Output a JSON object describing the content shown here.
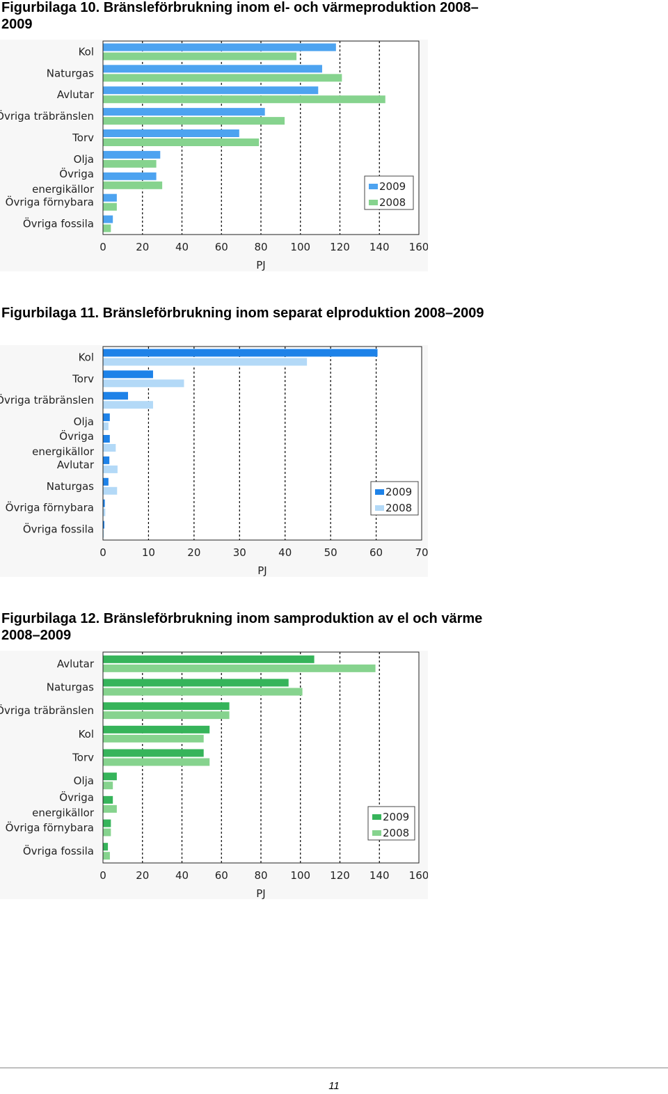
{
  "figures": [
    {
      "caption": "Figurbilaga 10. Bränsleförbrukning inom el- och värmeproduktion 2008–2009"
    },
    {
      "caption": "Figurbilaga 11. Bränsleförbrukning inom separat elproduktion 2008–2009"
    },
    {
      "caption": "Figurbilaga 12. Bränsleförbrukning inom samproduktion av el och värme 2008–2009"
    }
  ],
  "chart_data": [
    {
      "type": "bar",
      "orientation": "horizontal",
      "categories": [
        "Kol",
        "Naturgas",
        "Avlutar",
        "Övriga träbränslen",
        "Torv",
        "Olja",
        "Övriga energikällor",
        "Övriga förnybara",
        "Övriga fossila"
      ],
      "series": [
        {
          "name": "2009",
          "color": "#4da3f0",
          "values": [
            118,
            111,
            109,
            82,
            69,
            29,
            27,
            7,
            5
          ]
        },
        {
          "name": "2008",
          "color": "#86d38e",
          "values": [
            98,
            121,
            143,
            92,
            79,
            27,
            30,
            7,
            4
          ]
        }
      ],
      "xlabel": "PJ",
      "xlim": [
        0,
        160
      ],
      "xticks": [
        0,
        20,
        40,
        60,
        80,
        100,
        120,
        140,
        160
      ],
      "grid": "vertical dashed",
      "legend": "bottom-right"
    },
    {
      "type": "bar",
      "orientation": "horizontal",
      "categories": [
        "Kol",
        "Torv",
        "Övriga träbränslen",
        "Olja",
        "Övriga energikällor",
        "Avlutar",
        "Naturgas",
        "Övriga förnybara",
        "Övriga fossila"
      ],
      "series": [
        {
          "name": "2009",
          "color": "#1e82e8",
          "values": [
            60.3,
            11,
            5.5,
            1.5,
            1.5,
            1.4,
            1.2,
            0.4,
            0.3
          ]
        },
        {
          "name": "2008",
          "color": "#b3d9f7",
          "values": [
            44.8,
            17.8,
            11,
            1.2,
            2.8,
            3.2,
            3.1,
            0.5,
            0.2
          ]
        }
      ],
      "xlabel": "PJ",
      "xlim": [
        0,
        70
      ],
      "xticks": [
        0,
        10,
        20,
        30,
        40,
        50,
        60,
        70
      ],
      "grid": "vertical dashed",
      "legend": "bottom-right"
    },
    {
      "type": "bar",
      "orientation": "horizontal",
      "categories": [
        "Avlutar",
        "Naturgas",
        "Övriga träbränslen",
        "Kol",
        "Torv",
        "Olja",
        "Övriga energikällor",
        "Övriga förnybara",
        "Övriga fossila"
      ],
      "series": [
        {
          "name": "2009",
          "color": "#36b45a",
          "values": [
            107,
            94,
            64,
            54,
            51,
            7,
            5,
            4,
            2.5
          ]
        },
        {
          "name": "2008",
          "color": "#86d38e",
          "values": [
            138,
            101,
            64,
            51,
            54,
            5,
            7,
            4,
            3.5
          ]
        }
      ],
      "xlabel": "PJ",
      "xlim": [
        0,
        160
      ],
      "xticks": [
        0,
        20,
        40,
        60,
        80,
        100,
        120,
        140,
        160
      ],
      "grid": "vertical dashed",
      "legend": "bottom-right"
    }
  ],
  "footer": {
    "page_number": "11"
  }
}
